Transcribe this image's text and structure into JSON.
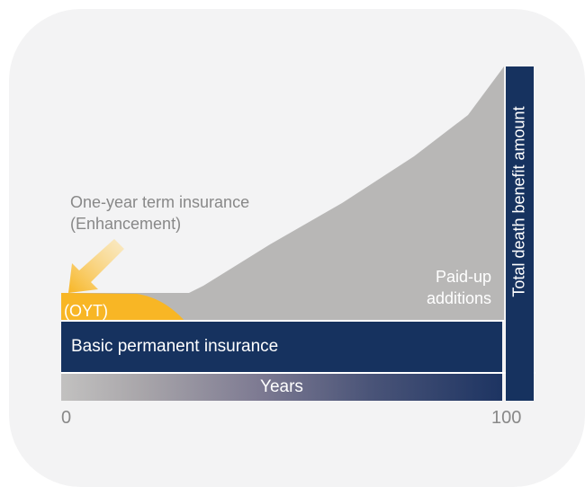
{
  "diagram": {
    "callout_line1": "One-year term insurance",
    "callout_line2": "(Enhancement)",
    "oyt_label": "(OYT)",
    "paid_up_line1": "Paid-up",
    "paid_up_line2": "additions",
    "basic_label": "Basic permanent insurance",
    "years_label": "Years",
    "total_label": "Total death benefit amount",
    "axis_start": "0",
    "axis_end": "100",
    "colors": {
      "navy": "#16325f",
      "gray_area": "#b8b7b6",
      "oyt": "#f8b625",
      "background": "#f3f3f4"
    }
  }
}
